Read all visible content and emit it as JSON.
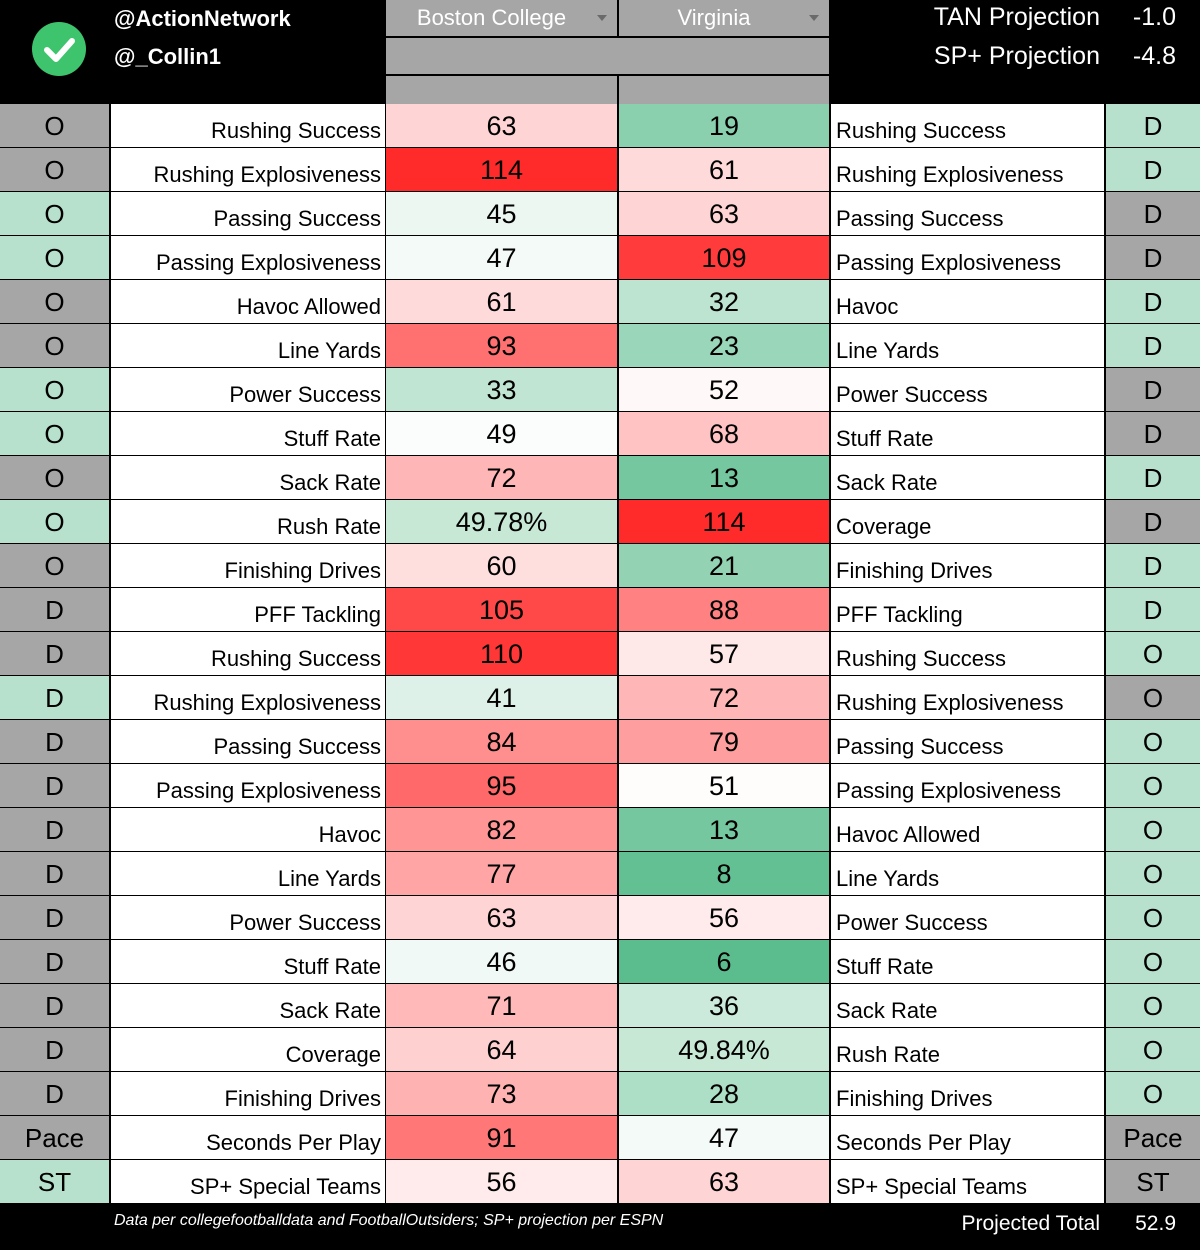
{
  "header": {
    "handle_1": "@ActionNetwork",
    "handle_2": "@_Collin1",
    "team_left": "Boston College",
    "team_right": "Virginia",
    "tan_label": "TAN Projection",
    "tan_value": "-1.0",
    "sp_label": "SP+ Projection",
    "sp_value": "-4.8"
  },
  "colors": {
    "good": "#57bb8a",
    "neutral": "#ffffff",
    "bad": "#ff2a2a",
    "side_grey": "#a6a6a6",
    "side_green": "#b7e1cd"
  },
  "rows": [
    {
      "side_l": "O",
      "side_l_color": "grey",
      "label_l": "Rushing Success",
      "bc": "63",
      "va": "19",
      "label_r": "Rushing Success",
      "side_r": "D",
      "side_r_color": "green"
    },
    {
      "side_l": "O",
      "side_l_color": "grey",
      "label_l": "Rushing Explosiveness",
      "bc": "114",
      "va": "61",
      "label_r": "Rushing Explosiveness",
      "side_r": "D",
      "side_r_color": "green"
    },
    {
      "side_l": "O",
      "side_l_color": "green",
      "label_l": "Passing Success",
      "bc": "45",
      "va": "63",
      "label_r": "Passing Success",
      "side_r": "D",
      "side_r_color": "grey"
    },
    {
      "side_l": "O",
      "side_l_color": "green",
      "label_l": "Passing Explosiveness",
      "bc": "47",
      "va": "109",
      "label_r": "Passing Explosiveness",
      "side_r": "D",
      "side_r_color": "grey"
    },
    {
      "side_l": "O",
      "side_l_color": "grey",
      "label_l": "Havoc Allowed",
      "bc": "61",
      "va": "32",
      "label_r": "Havoc",
      "side_r": "D",
      "side_r_color": "green"
    },
    {
      "side_l": "O",
      "side_l_color": "grey",
      "label_l": "Line Yards",
      "bc": "93",
      "va": "23",
      "label_r": "Line Yards",
      "side_r": "D",
      "side_r_color": "green"
    },
    {
      "side_l": "O",
      "side_l_color": "green",
      "label_l": "Power Success",
      "bc": "33",
      "va": "52",
      "label_r": "Power Success",
      "side_r": "D",
      "side_r_color": "grey"
    },
    {
      "side_l": "O",
      "side_l_color": "green",
      "label_l": "Stuff Rate",
      "bc": "49",
      "va": "68",
      "label_r": "Stuff Rate",
      "side_r": "D",
      "side_r_color": "grey"
    },
    {
      "side_l": "O",
      "side_l_color": "grey",
      "label_l": "Sack Rate",
      "bc": "72",
      "va": "13",
      "label_r": "Sack Rate",
      "side_r": "D",
      "side_r_color": "green"
    },
    {
      "side_l": "O",
      "side_l_color": "green",
      "label_l": "Rush Rate",
      "bc": "49.78%",
      "va": "114",
      "label_r": "Coverage",
      "side_r": "D",
      "side_r_color": "grey"
    },
    {
      "side_l": "O",
      "side_l_color": "grey",
      "label_l": "Finishing Drives",
      "bc": "60",
      "va": "21",
      "label_r": "Finishing Drives",
      "side_r": "D",
      "side_r_color": "green"
    },
    {
      "side_l": "D",
      "side_l_color": "grey",
      "label_l": "PFF Tackling",
      "bc": "105",
      "va": "88",
      "label_r": "PFF Tackling",
      "side_r": "D",
      "side_r_color": "green"
    },
    {
      "side_l": "D",
      "side_l_color": "grey",
      "label_l": "Rushing Success",
      "bc": "110",
      "va": "57",
      "label_r": "Rushing Success",
      "side_r": "O",
      "side_r_color": "green"
    },
    {
      "side_l": "D",
      "side_l_color": "green",
      "label_l": "Rushing Explosiveness",
      "bc": "41",
      "va": "72",
      "label_r": "Rushing Explosiveness",
      "side_r": "O",
      "side_r_color": "grey"
    },
    {
      "side_l": "D",
      "side_l_color": "grey",
      "label_l": "Passing Success",
      "bc": "84",
      "va": "79",
      "label_r": "Passing Success",
      "side_r": "O",
      "side_r_color": "green"
    },
    {
      "side_l": "D",
      "side_l_color": "grey",
      "label_l": "Passing Explosiveness",
      "bc": "95",
      "va": "51",
      "label_r": "Passing Explosiveness",
      "side_r": "O",
      "side_r_color": "green"
    },
    {
      "side_l": "D",
      "side_l_color": "grey",
      "label_l": "Havoc",
      "bc": "82",
      "va": "13",
      "label_r": "Havoc Allowed",
      "side_r": "O",
      "side_r_color": "green"
    },
    {
      "side_l": "D",
      "side_l_color": "grey",
      "label_l": "Line Yards",
      "bc": "77",
      "va": "8",
      "label_r": "Line Yards",
      "side_r": "O",
      "side_r_color": "green"
    },
    {
      "side_l": "D",
      "side_l_color": "grey",
      "label_l": "Power Success",
      "bc": "63",
      "va": "56",
      "label_r": "Power Success",
      "side_r": "O",
      "side_r_color": "green"
    },
    {
      "side_l": "D",
      "side_l_color": "grey",
      "label_l": "Stuff Rate",
      "bc": "46",
      "va": "6",
      "label_r": "Stuff Rate",
      "side_r": "O",
      "side_r_color": "green"
    },
    {
      "side_l": "D",
      "side_l_color": "grey",
      "label_l": "Sack Rate",
      "bc": "71",
      "va": "36",
      "label_r": "Sack Rate",
      "side_r": "O",
      "side_r_color": "green"
    },
    {
      "side_l": "D",
      "side_l_color": "grey",
      "label_l": "Coverage",
      "bc": "64",
      "va": "49.84%",
      "label_r": "Rush Rate",
      "side_r": "O",
      "side_r_color": "green"
    },
    {
      "side_l": "D",
      "side_l_color": "grey",
      "label_l": "Finishing Drives",
      "bc": "73",
      "va": "28",
      "label_r": "Finishing Drives",
      "side_r": "O",
      "side_r_color": "green"
    },
    {
      "side_l": "Pace",
      "side_l_color": "grey",
      "label_l": "Seconds Per Play",
      "bc": "91",
      "va": "47",
      "label_r": "Seconds Per Play",
      "side_r": "Pace",
      "side_r_color": "grey"
    },
    {
      "side_l": "ST",
      "side_l_color": "green",
      "label_l": "SP+ Special Teams",
      "bc": "56",
      "va": "63",
      "label_r": "SP+ Special Teams",
      "side_r": "ST",
      "side_r_color": "grey"
    }
  ],
  "footer": {
    "note": "Data per collegefootballdata and FootballOutsiders; SP+ projection per ESPN",
    "total_label": "Projected Total",
    "total_value": "52.9"
  }
}
